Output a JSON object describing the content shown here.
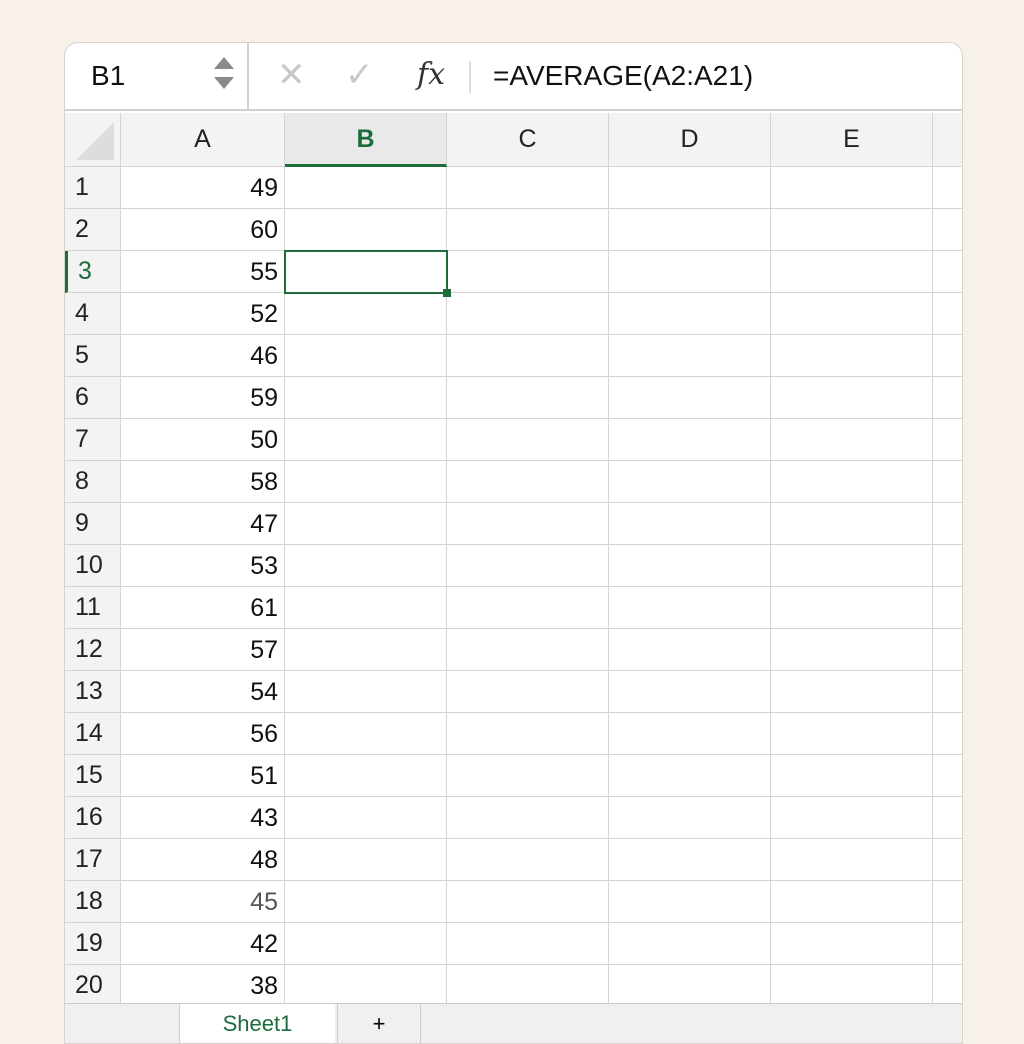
{
  "formula_bar": {
    "name_box": "B1",
    "cancel_icon": "x-icon",
    "enter_icon": "check-icon",
    "fx_label": "fx",
    "formula": "=AVERAGE(A2:A21)"
  },
  "columns": [
    "A",
    "B",
    "C",
    "D",
    "E"
  ],
  "selected_column": "B",
  "selected_row": 3,
  "selected_cell": "B3",
  "rows": [
    {
      "n": "1",
      "a": "49"
    },
    {
      "n": "2",
      "a": "60"
    },
    {
      "n": "3",
      "a": "55"
    },
    {
      "n": "4",
      "a": "52"
    },
    {
      "n": "5",
      "a": "46"
    },
    {
      "n": "6",
      "a": "59"
    },
    {
      "n": "7",
      "a": "50"
    },
    {
      "n": "8",
      "a": "58"
    },
    {
      "n": "9",
      "a": "47"
    },
    {
      "n": "10",
      "a": "53"
    },
    {
      "n": "11",
      "a": "61"
    },
    {
      "n": "12",
      "a": "57"
    },
    {
      "n": "13",
      "a": "54"
    },
    {
      "n": "14",
      "a": "56"
    },
    {
      "n": "15",
      "a": "51"
    },
    {
      "n": "16",
      "a": "43"
    },
    {
      "n": "17",
      "a": "48"
    },
    {
      "n": "18",
      "a": "45"
    },
    {
      "n": "19",
      "a": "42"
    },
    {
      "n": "20",
      "a": "38"
    }
  ],
  "sheet_tabs": {
    "active": "Sheet1",
    "add": "+"
  },
  "accent": "#1e6b3c"
}
